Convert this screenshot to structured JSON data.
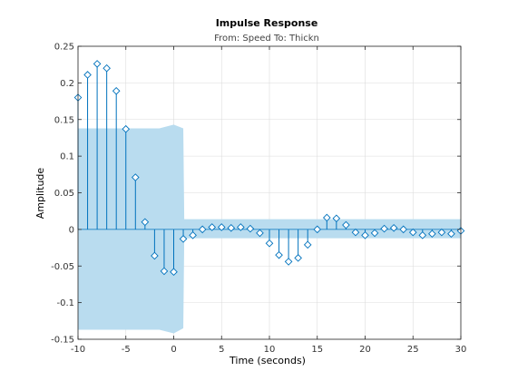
{
  "chart_data": {
    "type": "stem",
    "title": "Impulse Response",
    "subtitle": "From: Speed  To: Thickn",
    "xlabel": "Time (seconds)",
    "ylabel": "Amplitude",
    "xlim": [
      -10,
      30
    ],
    "ylim": [
      -0.15,
      0.25
    ],
    "xticks": [
      -10,
      -5,
      0,
      5,
      10,
      15,
      20,
      25,
      30
    ],
    "yticks": [
      -0.15,
      -0.1,
      -0.05,
      0,
      0.05,
      0.1,
      0.15,
      0.2,
      0.25
    ],
    "xtick_labels": [
      "-10",
      "-5",
      "0",
      "5",
      "10",
      "15",
      "20",
      "25",
      "30"
    ],
    "ytick_labels": [
      "-0.15",
      "-0.1",
      "-0.05",
      "0",
      "0.05",
      "0.1",
      "0.15",
      "0.2",
      "0.25"
    ],
    "grid": true,
    "colors": {
      "stem": "#0072BD",
      "band": "#b9dcef",
      "grid": "#dcdcdc"
    },
    "confidence_band": [
      {
        "x": -10,
        "lower": -0.137,
        "upper": 0.138
      },
      {
        "x": -1.5,
        "lower": -0.137,
        "upper": 0.138
      },
      {
        "x": 0,
        "lower": -0.142,
        "upper": 0.143
      },
      {
        "x": 1,
        "lower": -0.135,
        "upper": 0.138
      },
      {
        "x": 1.1,
        "lower": -0.012,
        "upper": 0.014
      },
      {
        "x": 30,
        "lower": -0.012,
        "upper": 0.014
      }
    ],
    "x": [
      -10,
      -9,
      -8,
      -7,
      -6,
      -5,
      -4,
      -3,
      -2,
      -1,
      0,
      1,
      2,
      3,
      4,
      5,
      6,
      7,
      8,
      9,
      10,
      11,
      12,
      13,
      14,
      15,
      16,
      17,
      18,
      19,
      20,
      21,
      22,
      23,
      24,
      25,
      26,
      27,
      28,
      29,
      30
    ],
    "y": [
      0.18,
      0.211,
      0.226,
      0.22,
      0.189,
      0.137,
      0.071,
      0.01,
      -0.036,
      -0.057,
      -0.058,
      -0.013,
      -0.008,
      0.0,
      0.003,
      0.003,
      0.002,
      0.003,
      0.001,
      -0.005,
      -0.019,
      -0.035,
      -0.044,
      -0.039,
      -0.021,
      0.0,
      0.016,
      0.015,
      0.006,
      -0.004,
      -0.008,
      -0.005,
      0.001,
      0.002,
      0.0,
      -0.004,
      -0.008,
      -0.006,
      -0.004,
      -0.006,
      -0.002
    ]
  }
}
